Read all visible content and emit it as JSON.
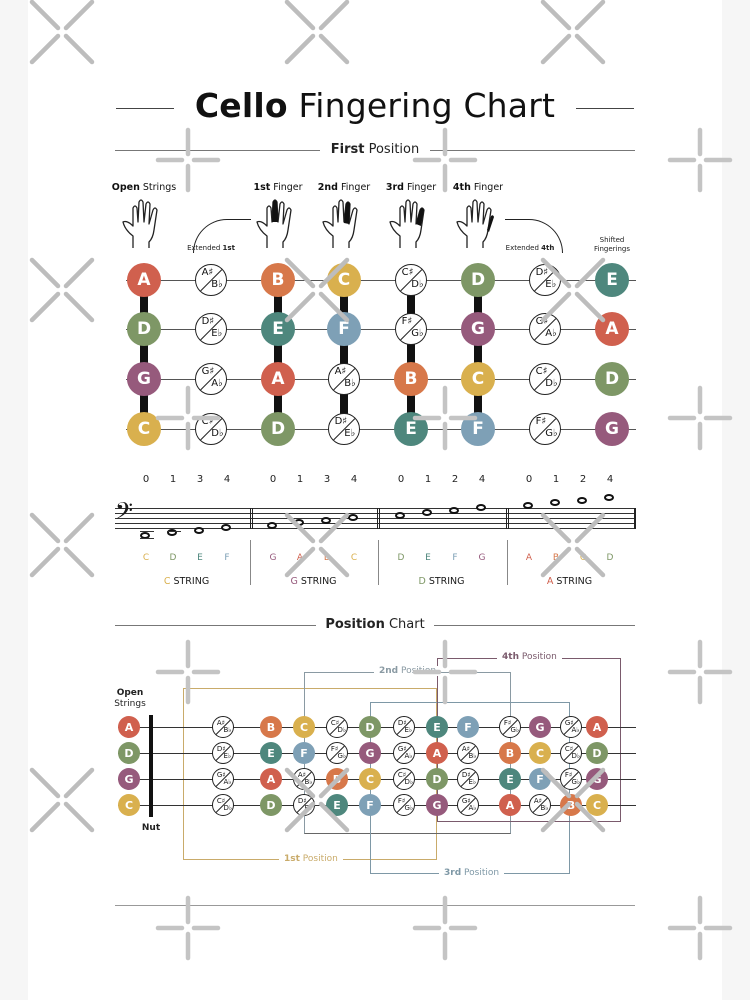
{
  "title": {
    "bold": "Cello",
    "rest": " Fingering Chart"
  },
  "first_position": {
    "section_title_bold": "First",
    "section_title_rest": " Position",
    "headers": [
      {
        "bold": "Open",
        "rest": " Strings"
      },
      {
        "bold": "1st",
        "rest": " Finger"
      },
      {
        "bold": "2nd",
        "rest": " Finger"
      },
      {
        "bold": "3rd",
        "rest": " Finger"
      },
      {
        "bold": "4th",
        "rest": " Finger"
      }
    ],
    "extended_1st": {
      "rest": "Extended ",
      "bold": "1st"
    },
    "extended_4th": {
      "rest": "Extended ",
      "bold": "4th"
    },
    "shifted": {
      "line1": "Shifted",
      "line2": "Fingerings"
    },
    "grid": [
      [
        "A",
        "A#/Bb",
        "B",
        "C",
        "C#/Db",
        "D",
        "D#/Eb",
        "E"
      ],
      [
        "D",
        "D#/Eb",
        "E",
        "F",
        "F#/Gb",
        "G",
        "G#/Ab",
        "A"
      ],
      [
        "G",
        "G#/Ab",
        "A",
        "A#/Bb",
        "B",
        "C",
        "C#/Db",
        "D"
      ],
      [
        "C",
        "C#/Db",
        "D",
        "D#/Eb",
        "E",
        "F",
        "F#/Gb",
        "G"
      ]
    ]
  },
  "notation": {
    "strings": [
      {
        "name": "C",
        "label_rest": " STRING",
        "fingers": [
          "0",
          "1",
          "3",
          "4"
        ],
        "notes": [
          "C",
          "D",
          "E",
          "F"
        ]
      },
      {
        "name": "G",
        "label_rest": " STRING",
        "fingers": [
          "0",
          "1",
          "3",
          "4"
        ],
        "notes": [
          "G",
          "A",
          "B",
          "C"
        ]
      },
      {
        "name": "D",
        "label_rest": " STRING",
        "fingers": [
          "0",
          "1",
          "2",
          "4"
        ],
        "notes": [
          "D",
          "E",
          "F",
          "G"
        ]
      },
      {
        "name": "A",
        "label_rest": " STRING",
        "fingers": [
          "0",
          "1",
          "2",
          "4"
        ],
        "notes": [
          "A",
          "B",
          "C",
          "D"
        ]
      }
    ],
    "clef": "bass-clef"
  },
  "position_chart": {
    "section_title_bold": "Position",
    "section_title_rest": " Chart",
    "open_strings_label": {
      "line1": "Open",
      "line2": "Strings"
    },
    "nut_label": "Nut",
    "open_notes": [
      "A",
      "D",
      "G",
      "C"
    ],
    "rows": [
      [
        "A#/Bb",
        "B",
        "C",
        "C#/Db",
        "D",
        "D#/Eb",
        "E",
        "F",
        "F#/Gb",
        "G",
        "G#/Ab",
        "A"
      ],
      [
        "D#/Eb",
        "E",
        "F",
        "F#/Gb",
        "G",
        "G#/Ab",
        "A",
        "A#/Bb",
        "B",
        "C",
        "C#/Db",
        "D"
      ],
      [
        "G#/Ab",
        "A",
        "A#/Bb",
        "B",
        "C",
        "C#/Db",
        "D",
        "D#/Eb",
        "E",
        "F",
        "F#/Gb",
        "G"
      ],
      [
        "C#/Db",
        "D",
        "D#/Eb",
        "E",
        "F",
        "F#/Gb",
        "G",
        "G#/Ab",
        "A",
        "A#/Bb",
        "B",
        "C"
      ]
    ],
    "positions": [
      {
        "bold": "1st",
        "rest": " Position",
        "color": "#c9ab6a"
      },
      {
        "bold": "2nd",
        "rest": " Position",
        "color": "#8a9aa3"
      },
      {
        "bold": "3rd",
        "rest": " Position",
        "color": "#7e98a6"
      },
      {
        "bold": "4th",
        "rest": " Position",
        "color": "#7a5a6c"
      }
    ]
  },
  "colors": {
    "A": "#d0604e",
    "B": "#d7784a",
    "C": "#d9b04e",
    "D": "#7e9766",
    "E": "#4e877d",
    "F": "#7ea0b6",
    "G": "#965a7c"
  }
}
